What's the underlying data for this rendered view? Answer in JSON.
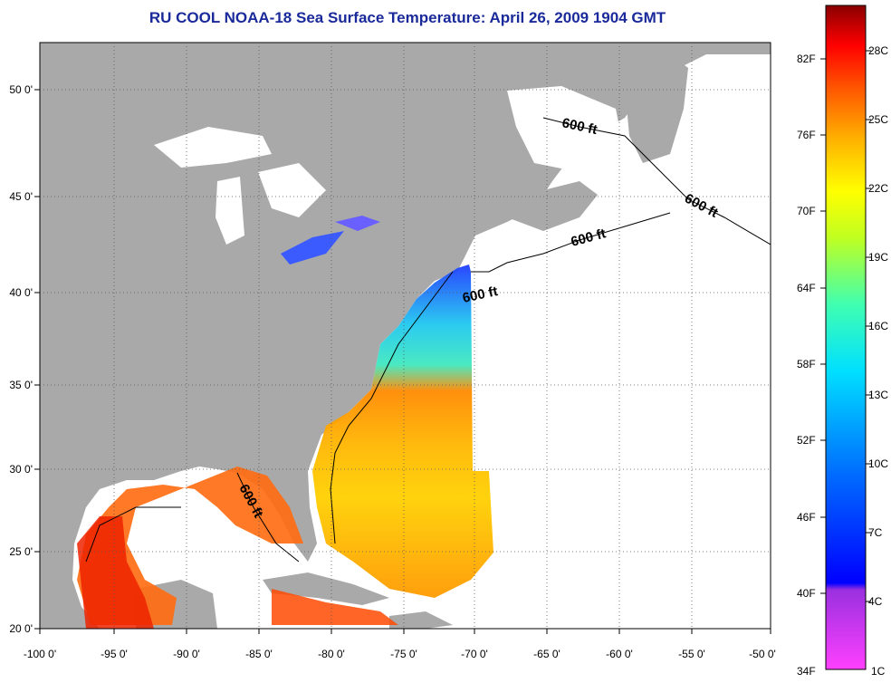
{
  "title": "RU COOL  NOAA-18  Sea Surface Temperature:  April 26, 2009 1904 GMT",
  "lat_ticks": [
    "50 0'",
    "45 0'",
    "40 0'",
    "35 0'",
    "30 0'",
    "25 0'",
    "20 0'"
  ],
  "lon_ticks": [
    "-100 0'",
    "-95 0'",
    "-90 0'",
    "-85 0'",
    "-80 0'",
    "-75 0'",
    "-70 0'",
    "-65 0'",
    "-60 0'",
    "-55 0'",
    "-50 0'"
  ],
  "contour_labels": [
    "600 ft",
    "600 ft",
    "600 ft",
    "600 ft",
    "600 ft"
  ],
  "colorbar": {
    "fahrenheit": [
      "82F",
      "76F",
      "70F",
      "64F",
      "58F",
      "52F",
      "46F",
      "40F",
      "34F"
    ],
    "celsius": [
      "28C",
      "25C",
      "22C",
      "19C",
      "16C",
      "13C",
      "10C",
      "7C",
      "4C",
      "1C"
    ]
  },
  "colors": {
    "land": "#a9a9a9",
    "no_data": "#ffffff",
    "title": "#1a2a9a"
  }
}
